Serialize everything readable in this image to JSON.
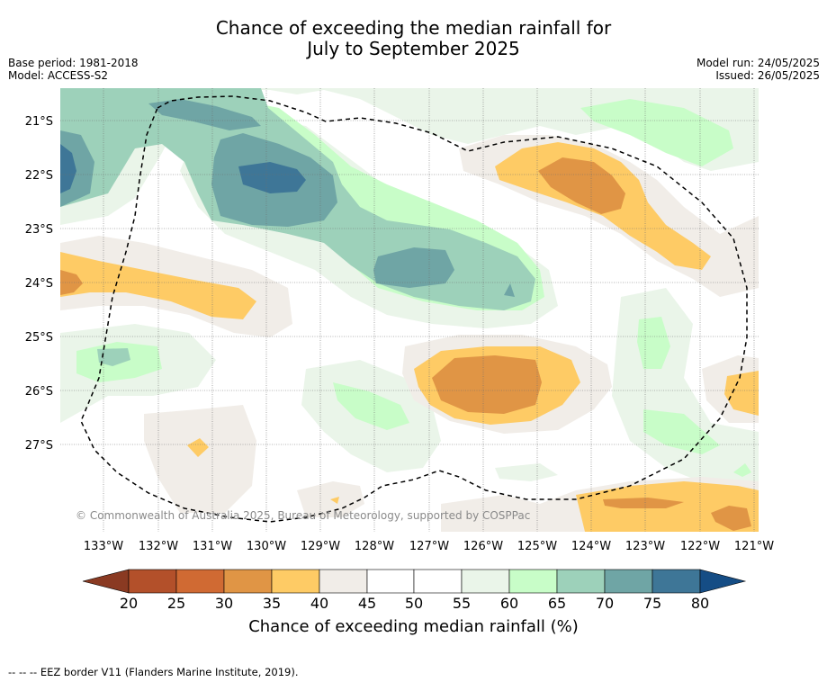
{
  "title": {
    "line1": "Chance of exceeding the median rainfall for",
    "line2": "July to September 2025"
  },
  "meta": {
    "base_period": "Base period: 1981-2018",
    "model": "Model: ACCESS-S2",
    "model_run": "Model run: 24/05/2025",
    "issued": "Issued: 26/05/2025"
  },
  "map": {
    "lat_labels": [
      "21°S",
      "22°S",
      "23°S",
      "24°S",
      "25°S",
      "26°S",
      "27°S"
    ],
    "lon_labels": [
      "133°W",
      "132°W",
      "131°W",
      "130°W",
      "129°W",
      "128°W",
      "127°W",
      "126°W",
      "125°W",
      "124°W",
      "123°W",
      "122°W",
      "121°W"
    ],
    "copyright": "© Commonwealth of Australia 2025, Bureau of Meteorology, supported by COSPPac",
    "colors": {
      "c20_25": "#b3502a",
      "c25_30": "#d06a33",
      "c30_35": "#e09545",
      "c35_40": "#fecb65",
      "c40_45": "#f1ede8",
      "c45_55": "#ffffff",
      "c55_60": "#eaf5e9",
      "c60_65": "#c8fdc8",
      "c65_70": "#9dd1ba",
      "c70_75": "#6fa5a5",
      "c75_80": "#3e7697",
      "below": "#8a3a22",
      "above": "#154d85"
    }
  },
  "colorbar": {
    "ticks": [
      "20",
      "25",
      "30",
      "35",
      "40",
      "45",
      "50",
      "55",
      "60",
      "65",
      "70",
      "75",
      "80"
    ],
    "label": "Chance of exceeding median rainfall (%)"
  },
  "footer": "--  --  -- EEZ border V11 (Flanders Marine Institute, 2019)."
}
